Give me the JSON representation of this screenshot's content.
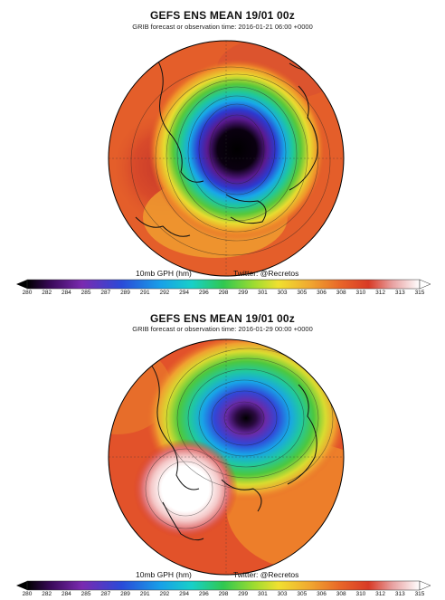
{
  "panels": [
    {
      "title": "GEFS ENS MEAN 19/01 00z",
      "subtitle": "GRIB forecast or observation time: 2016-01-21 06:00 +0000",
      "colorbar_label": "10mb GPH (hm)",
      "credit": "Twitter: @Recretos"
    },
    {
      "title": "GEFS ENS MEAN 19/01 00z",
      "subtitle": "GRIB forecast or observation time: 2016-01-29 00:00 +0000",
      "colorbar_label": "10mb GPH (hm)",
      "credit": "Twitter: @Recretos"
    }
  ],
  "colorbar_ticks": [
    "280",
    "282",
    "284",
    "285",
    "287",
    "289",
    "291",
    "292",
    "294",
    "296",
    "298",
    "299",
    "301",
    "303",
    "305",
    "306",
    "308",
    "310",
    "312",
    "313",
    "315"
  ],
  "colors": {
    "low": "#000000",
    "purple": "#5a0a8a",
    "blue": "#1e5adc",
    "cyan": "#14c8dc",
    "green": "#2cc84a",
    "yellow": "#f0e030",
    "orange": "#f08c28",
    "red": "#e04020",
    "pink": "#f0b0b0",
    "high": "#ffffff"
  }
}
